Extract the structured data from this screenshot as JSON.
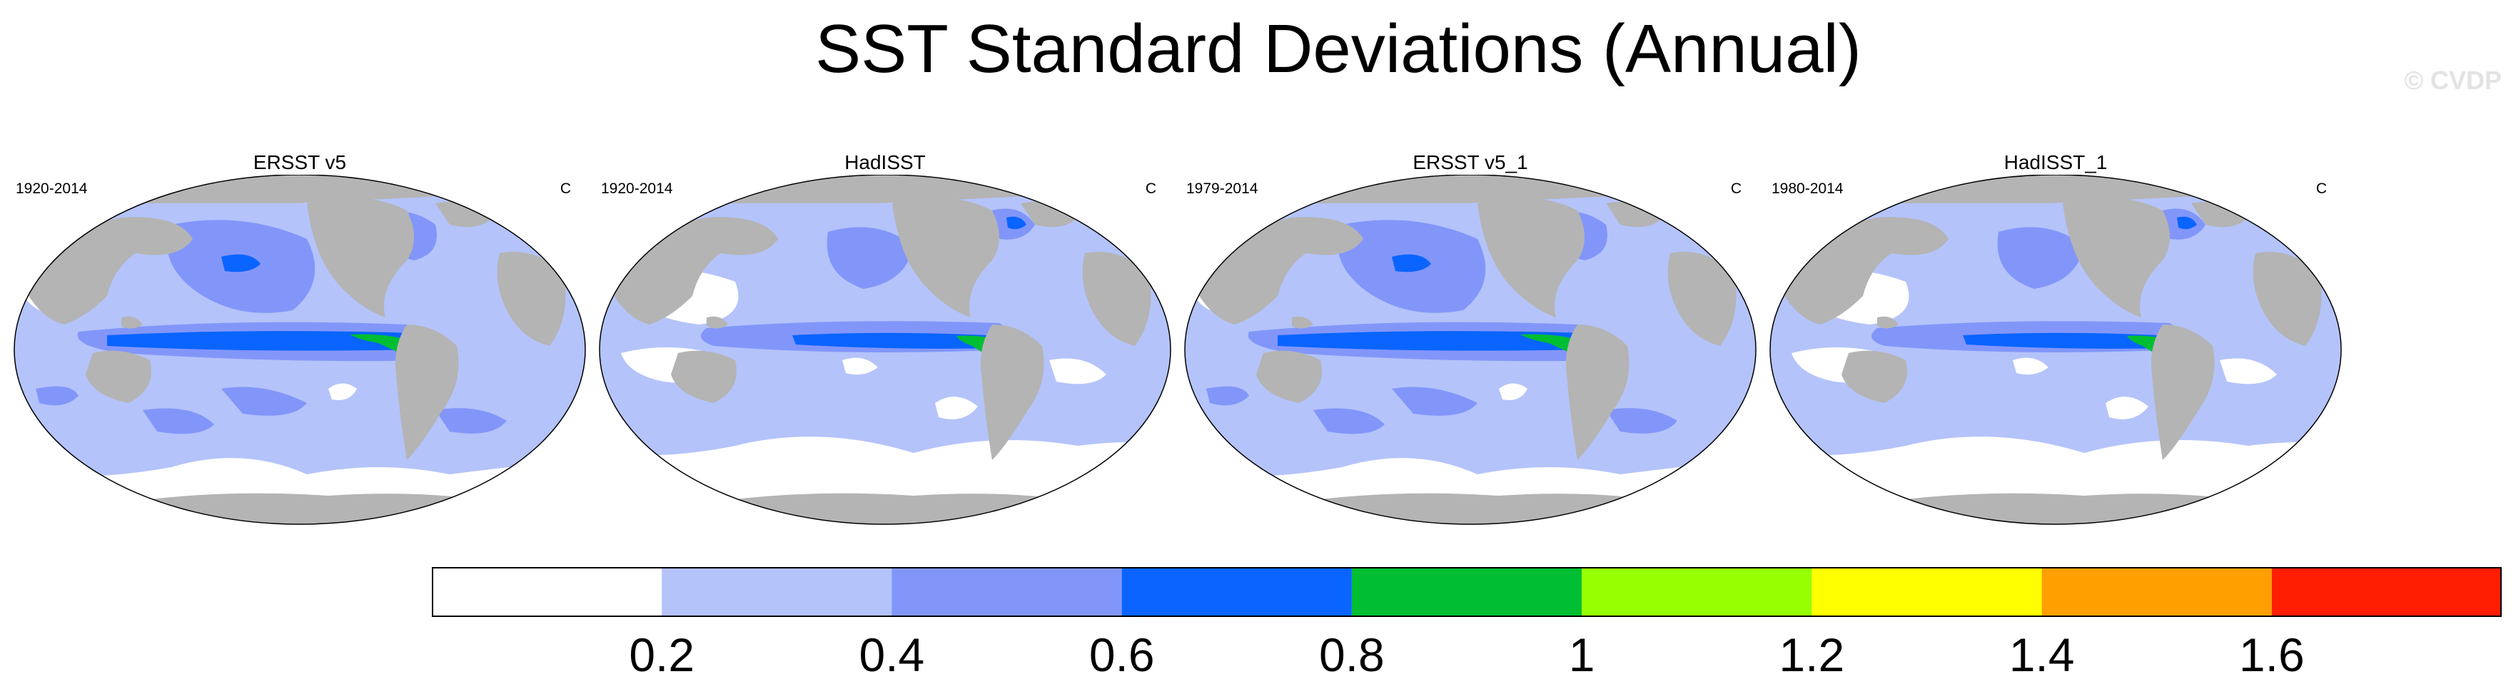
{
  "page": {
    "title": "SST Standard Deviations (Annual)",
    "watermark": "© CVDP"
  },
  "panels": [
    {
      "title": "ERSST v5",
      "period": "1920-2014",
      "units": "C"
    },
    {
      "title": "HadISST",
      "period": "1920-2014",
      "units": "C"
    },
    {
      "title": "ERSST v5_1",
      "period": "1979-2014",
      "units": "C"
    },
    {
      "title": "HadISST_1",
      "period": "1980-2014",
      "units": "C"
    }
  ],
  "colorbar": {
    "labels": [
      "0.2",
      "0.4",
      "0.6",
      "0.8",
      "1",
      "1.2",
      "1.4",
      "1.6"
    ],
    "levels": [
      0.2,
      0.4,
      0.6,
      0.8,
      1.0,
      1.2,
      1.4,
      1.6
    ],
    "colors": [
      "#ffffff",
      "#b4c3fa",
      "#8296fa",
      "#0a64ff",
      "#00be32",
      "#96ff00",
      "#ffff00",
      "#ffa000",
      "#ff1e00"
    ]
  },
  "colors": {
    "land": "#b4b4b4",
    "coast": "#ffffff"
  }
}
